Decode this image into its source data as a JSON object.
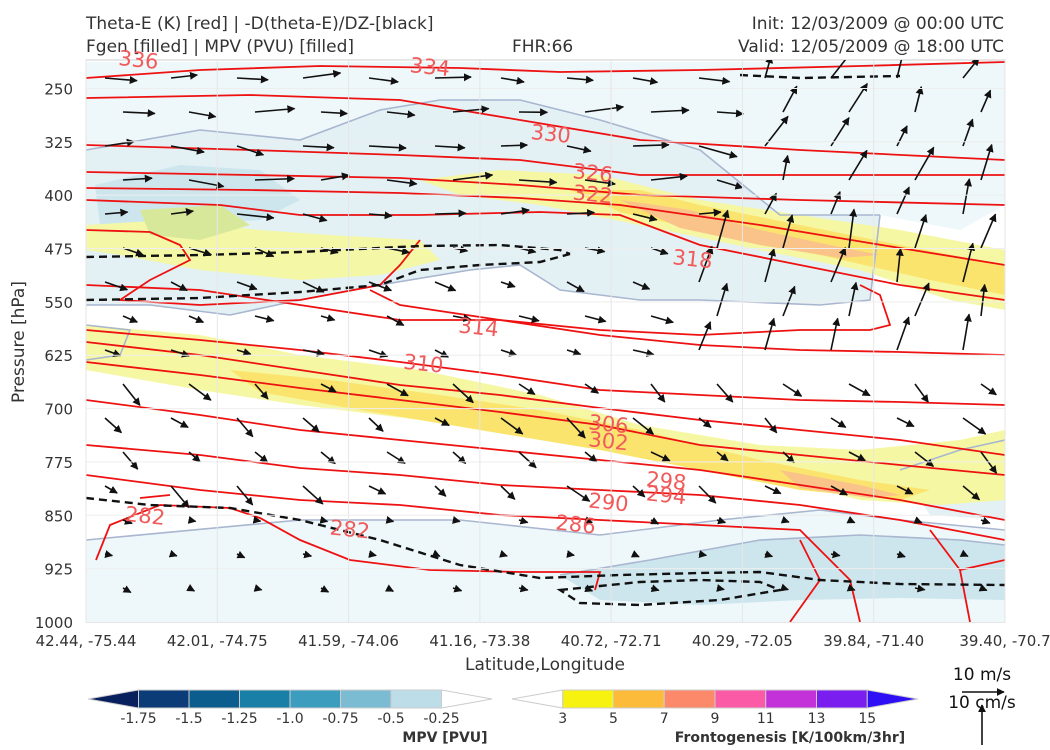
{
  "header": {
    "title_line1": "Theta-E (K) [red] | -D(theta-E)/DZ-[black]",
    "title_line2": "Fgen [filled] | MPV (PVU) [filled]",
    "fhr": "FHR:66",
    "init": "Init: 12/03/2009 @ 00:00 UTC",
    "valid": "Valid: 12/05/2009 @ 18:00 UTC"
  },
  "chart_data": {
    "type": "cross-section",
    "ylabel": "Pressure [hPa]",
    "xlabel": "Latitude,Longitude",
    "y_axis": {
      "scale": "inverted",
      "range": [
        1000,
        210
      ],
      "ticks": [
        250,
        325,
        400,
        475,
        550,
        625,
        700,
        775,
        850,
        925,
        1000
      ]
    },
    "x_ticks": [
      "42.44, -75.44",
      "42.01, -74.75",
      "41.59, -74.06",
      "41.16, -73.38",
      "40.72, -72.71",
      "40.29, -72.05",
      "39.84, -71.40",
      "39.40, -70.7"
    ],
    "theta_e_contour_labels": [
      {
        "value": "334",
        "x_index": 2.62,
        "pressure": 220
      },
      {
        "value": "336",
        "x_index": 0.4,
        "pressure": 210
      },
      {
        "value": "330",
        "x_index": 3.54,
        "pressure": 314
      },
      {
        "value": "326",
        "x_index": 3.86,
        "pressure": 369
      },
      {
        "value": "322",
        "x_index": 3.86,
        "pressure": 399
      },
      {
        "value": "318",
        "x_index": 4.62,
        "pressure": 490
      },
      {
        "value": "314",
        "x_index": 2.99,
        "pressure": 586
      },
      {
        "value": "310",
        "x_index": 2.57,
        "pressure": 637
      },
      {
        "value": "306",
        "x_index": 3.98,
        "pressure": 722
      },
      {
        "value": "302",
        "x_index": 3.98,
        "pressure": 746
      },
      {
        "value": "298",
        "x_index": 4.42,
        "pressure": 802
      },
      {
        "value": "294",
        "x_index": 4.42,
        "pressure": 822
      },
      {
        "value": "290",
        "x_index": 3.98,
        "pressure": 832
      },
      {
        "value": "286",
        "x_index": 3.73,
        "pressure": 863
      },
      {
        "value": "282",
        "x_index": 2.01,
        "pressure": 870
      },
      {
        "value": "282",
        "x_index": 0.45,
        "pressure": 851
      }
    ],
    "mpv_colorbar": {
      "label": "MPV [PVU]",
      "ticks": [
        "-1.75",
        "-1.5",
        "-1.25",
        "-1.0",
        "-0.75",
        "-0.5",
        "-0.25"
      ],
      "colors": [
        "#08205e",
        "#0b3c78",
        "#0b5d8d",
        "#1a7fa6",
        "#3c9dbf",
        "#7bbcd3",
        "#bddde8",
        "#ffffff"
      ]
    },
    "fgen_colorbar": {
      "label": "Frontogenesis [K/100km/3hr]",
      "ticks": [
        "3",
        "5",
        "7",
        "9",
        "11",
        "13",
        "15"
      ],
      "colors": [
        "#ffffff",
        "#f7f20f",
        "#fdbb3c",
        "#fc8a6a",
        "#fb5ba6",
        "#c331d9",
        "#7a1ef0",
        "#2f10f5"
      ]
    },
    "vector_key": {
      "wind": "10 m/s",
      "vertical": "10 cm/s"
    },
    "grid": true
  }
}
